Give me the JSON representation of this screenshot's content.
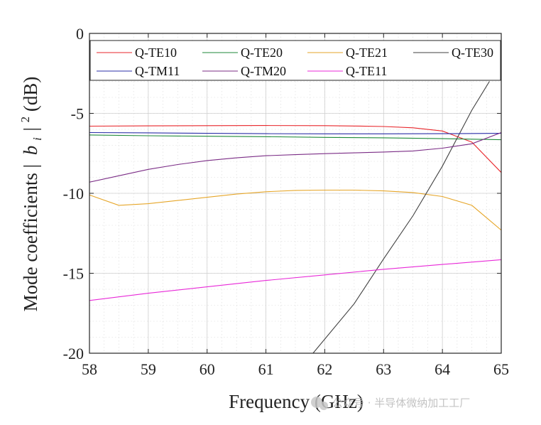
{
  "chart_data": {
    "type": "line",
    "title": "",
    "xlabel": "Frequency (GHz)",
    "ylabel_parts": [
      "Mode coefficients |",
      "b",
      "i",
      "|",
      "2",
      " (dB)"
    ],
    "xlim": [
      58,
      65
    ],
    "ylim": [
      -20,
      0
    ],
    "xticks": [
      58,
      59,
      60,
      61,
      62,
      63,
      64,
      65
    ],
    "yticks": [
      0,
      -5,
      -10,
      -15,
      -20
    ],
    "ytick_labels": [
      "0",
      "-5",
      "-10",
      "-15",
      "-20"
    ],
    "grid": true,
    "minor_grid": true,
    "legend_position": "top",
    "series": [
      {
        "name": "Q-TE10",
        "color": "#e8262b",
        "x": [
          58,
          59,
          60,
          61,
          62,
          62.5,
          63,
          63.5,
          64,
          64.5,
          65
        ],
        "y": [
          -5.8,
          -5.78,
          -5.77,
          -5.76,
          -5.77,
          -5.79,
          -5.82,
          -5.9,
          -6.1,
          -6.8,
          -8.7
        ]
      },
      {
        "name": "Q-TE20",
        "color": "#1f8a3a",
        "x": [
          58,
          59,
          60,
          61,
          62,
          63,
          64,
          65
        ],
        "y": [
          -6.35,
          -6.4,
          -6.43,
          -6.46,
          -6.5,
          -6.53,
          -6.58,
          -6.65
        ]
      },
      {
        "name": "Q-TE21",
        "color": "#e6a629",
        "x": [
          58,
          58.5,
          59,
          59.5,
          60,
          60.5,
          61,
          61.5,
          62,
          62.5,
          63,
          63.5,
          64,
          64.5,
          65
        ],
        "y": [
          -10.1,
          -10.75,
          -10.65,
          -10.45,
          -10.25,
          -10.05,
          -9.9,
          -9.82,
          -9.8,
          -9.8,
          -9.85,
          -9.95,
          -10.2,
          -10.75,
          -12.3
        ]
      },
      {
        "name": "Q-TE30",
        "color": "#404040",
        "x": [
          61.8,
          62.5,
          63,
          63.5,
          64,
          64.5,
          64.8
        ],
        "y": [
          -20,
          -16.9,
          -14.1,
          -11.4,
          -8.3,
          -4.8,
          -3.0
        ]
      },
      {
        "name": "Q-TM11",
        "color": "#2b2fa8",
        "x": [
          58,
          59,
          60,
          61,
          62,
          63,
          64,
          65
        ],
        "y": [
          -6.2,
          -6.22,
          -6.25,
          -6.27,
          -6.28,
          -6.28,
          -6.27,
          -6.25
        ]
      },
      {
        "name": "Q-TM20",
        "color": "#7b2d86",
        "x": [
          58,
          58.5,
          59,
          59.5,
          60,
          60.5,
          61,
          61.5,
          62,
          62.5,
          63,
          63.5,
          64,
          64.5,
          65
        ],
        "y": [
          -9.3,
          -8.9,
          -8.5,
          -8.2,
          -7.95,
          -7.78,
          -7.65,
          -7.58,
          -7.52,
          -7.47,
          -7.42,
          -7.35,
          -7.18,
          -6.9,
          -6.2
        ]
      },
      {
        "name": "Q-TE11",
        "color": "#e829d8",
        "x": [
          58,
          59,
          60,
          61,
          62,
          63,
          64,
          65
        ],
        "y": [
          -16.7,
          -16.25,
          -15.85,
          -15.45,
          -15.1,
          -14.75,
          -14.45,
          -14.15
        ]
      }
    ]
  },
  "watermark": {
    "text": "公众号 · 半导体微纳加工工厂"
  }
}
